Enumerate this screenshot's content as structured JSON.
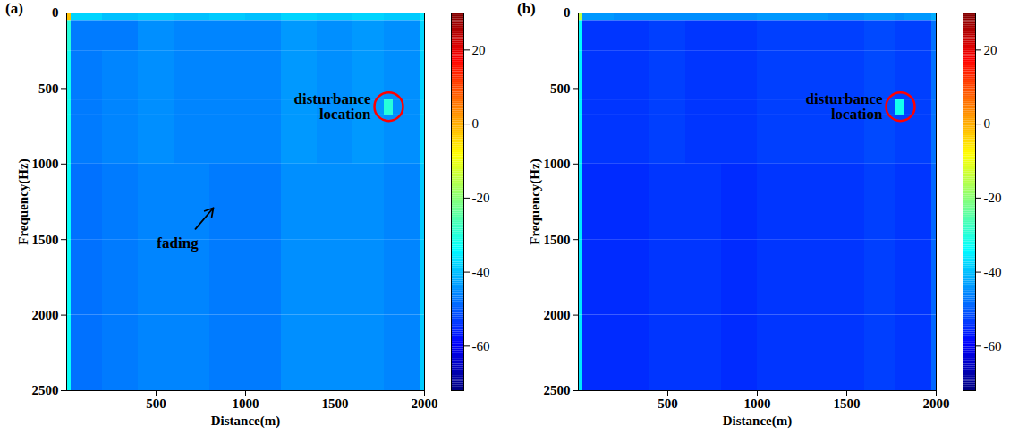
{
  "chart_data": [
    {
      "type": "heatmap",
      "title": "(a)",
      "x_label": "Distance(m)",
      "y_label": "Frequency(Hz)",
      "xlim": [
        0,
        2000
      ],
      "xticks": [
        500,
        1000,
        1500,
        2000
      ],
      "ylim": [
        0,
        2500
      ],
      "yticks": [
        0,
        500,
        1000,
        1500,
        2000,
        2500
      ],
      "distance_edges": [
        0,
        25,
        200,
        400,
        600,
        800,
        1000,
        1200,
        1400,
        1600,
        1775,
        1825,
        1975,
        2000
      ],
      "frequency_edges": [
        0,
        50,
        250,
        575,
        675,
        1000,
        1500,
        2000,
        2500
      ],
      "values": [
        [
          -2,
          -38,
          -40,
          -39,
          -40,
          -39,
          -40,
          -38,
          -39,
          -38,
          -39,
          -39,
          -36
        ],
        [
          -30,
          -47,
          -47,
          -45,
          -46,
          -46,
          -46,
          -44,
          -45,
          -44,
          -45,
          -45,
          -38
        ],
        [
          -32,
          -47,
          -46,
          -45,
          -46,
          -46,
          -46,
          -44,
          -45,
          -44,
          -45,
          -45,
          -38
        ],
        [
          -32,
          -47,
          -46,
          -45,
          -46,
          -46,
          -46,
          -44,
          -45,
          -44,
          -30,
          -45,
          -38
        ],
        [
          -32,
          -47,
          -46,
          -45,
          -46,
          -46,
          -46,
          -44,
          -45,
          -44,
          -45,
          -45,
          -38
        ],
        [
          -33,
          -48,
          -47,
          -46,
          -46,
          -47,
          -47,
          -45,
          -45,
          -45,
          -46,
          -46,
          -39
        ],
        [
          -33,
          -48,
          -47,
          -46,
          -46,
          -47,
          -47,
          -45,
          -45,
          -45,
          -46,
          -46,
          -39
        ],
        [
          -33,
          -48,
          -47,
          -46,
          -46,
          -47,
          -47,
          -45,
          -45,
          -45,
          -46,
          -46,
          -39
        ]
      ],
      "colorbar_range": [
        -72,
        30
      ],
      "colorbar_ticks": [
        20,
        0,
        -20,
        -40,
        -60
      ],
      "annotations": [
        {
          "text": "disturbance location",
          "x": 1800,
          "y": 620,
          "marker": "circle",
          "color": "red"
        },
        {
          "text": "fading",
          "x": 820,
          "y": 1290,
          "marker": "arrow",
          "color": "black"
        }
      ]
    },
    {
      "type": "heatmap",
      "title": "(b)",
      "x_label": "Distance(m)",
      "y_label": "Frequency(Hz)",
      "xlim": [
        0,
        2000
      ],
      "xticks": [
        500,
        1000,
        1500,
        2000
      ],
      "ylim": [
        0,
        2500
      ],
      "yticks": [
        0,
        500,
        1000,
        1500,
        2000,
        2500
      ],
      "distance_edges": [
        0,
        25,
        200,
        400,
        600,
        800,
        1000,
        1200,
        1400,
        1600,
        1775,
        1825,
        1975,
        2000
      ],
      "frequency_edges": [
        0,
        50,
        250,
        575,
        675,
        1000,
        1500,
        2000,
        2500
      ],
      "values": [
        [
          -15,
          -44,
          -45,
          -45,
          -45,
          -45,
          -44,
          -44,
          -45,
          -44,
          -45,
          -44,
          -42
        ],
        [
          -34,
          -54,
          -54,
          -53,
          -54,
          -54,
          -53,
          -53,
          -53,
          -52,
          -53,
          -53,
          -48
        ],
        [
          -35,
          -54,
          -54,
          -53,
          -54,
          -54,
          -53,
          -53,
          -53,
          -52,
          -53,
          -53,
          -48
        ],
        [
          -35,
          -54,
          -54,
          -53,
          -54,
          -54,
          -53,
          -53,
          -53,
          -52,
          -32,
          -53,
          -48
        ],
        [
          -35,
          -54,
          -54,
          -53,
          -54,
          -54,
          -53,
          -53,
          -53,
          -52,
          -53,
          -53,
          -48
        ],
        [
          -36,
          -55,
          -55,
          -54,
          -54,
          -55,
          -54,
          -54,
          -54,
          -53,
          -54,
          -54,
          -49
        ],
        [
          -36,
          -55,
          -55,
          -54,
          -54,
          -55,
          -54,
          -54,
          -54,
          -53,
          -54,
          -54,
          -49
        ],
        [
          -36,
          -55,
          -55,
          -54,
          -54,
          -55,
          -54,
          -54,
          -54,
          -53,
          -54,
          -54,
          -49
        ]
      ],
      "colorbar_range": [
        -72,
        30
      ],
      "colorbar_ticks": [
        20,
        0,
        -20,
        -40,
        -60
      ],
      "annotations": [
        {
          "text": "disturbance location",
          "x": 1800,
          "y": 620,
          "marker": "circle",
          "color": "red"
        }
      ]
    }
  ]
}
